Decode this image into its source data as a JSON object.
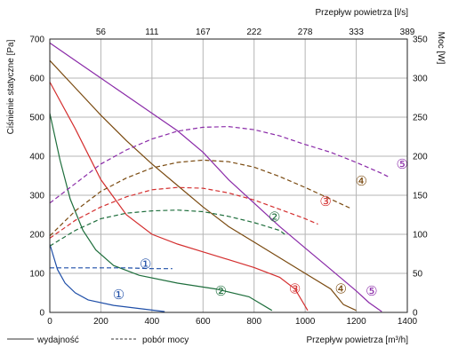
{
  "chart_data": {
    "type": "line",
    "x_axis": {
      "label": "Przepływ powietrza [m³/h]",
      "range": [
        0,
        1400
      ],
      "ticks": [
        0,
        200,
        400,
        600,
        800,
        1000,
        1200,
        1400
      ]
    },
    "x_top_axis": {
      "label": "Przepływ powietrza [l/s]",
      "ticks": [
        "56",
        "111",
        "167",
        "222",
        "278",
        "333",
        "389"
      ]
    },
    "y_left_axis": {
      "label": "Ciśnienie statyczne [Pa]",
      "range": [
        0,
        700
      ],
      "ticks": [
        0,
        100,
        200,
        300,
        400,
        500,
        600,
        700
      ]
    },
    "y_right_axis": {
      "label": "Moc [W]",
      "range": [
        0,
        350
      ],
      "ticks": [
        0,
        50,
        100,
        150,
        200,
        250,
        300,
        350
      ]
    },
    "grid": true,
    "legend": [
      {
        "style": "solid",
        "label": "wydajność"
      },
      {
        "style": "dashed",
        "label": "pobór mocy"
      }
    ],
    "pressure_series": [
      {
        "id": "1",
        "color": "#1f4fa8",
        "points": [
          [
            0,
            175
          ],
          [
            30,
            110
          ],
          [
            60,
            75
          ],
          [
            100,
            50
          ],
          [
            150,
            32
          ],
          [
            250,
            18
          ],
          [
            350,
            10
          ],
          [
            450,
            2
          ]
        ]
      },
      {
        "id": "2",
        "color": "#1e6e3c",
        "points": [
          [
            0,
            510
          ],
          [
            40,
            390
          ],
          [
            80,
            290
          ],
          [
            130,
            210
          ],
          [
            180,
            160
          ],
          [
            250,
            120
          ],
          [
            350,
            95
          ],
          [
            500,
            75
          ],
          [
            650,
            60
          ],
          [
            780,
            40
          ],
          [
            870,
            5
          ]
        ]
      },
      {
        "id": "3",
        "color": "#d42f2f",
        "points": [
          [
            0,
            590
          ],
          [
            100,
            470
          ],
          [
            200,
            340
          ],
          [
            300,
            250
          ],
          [
            400,
            200
          ],
          [
            500,
            175
          ],
          [
            600,
            155
          ],
          [
            700,
            135
          ],
          [
            800,
            115
          ],
          [
            900,
            90
          ],
          [
            960,
            60
          ],
          [
            1010,
            5
          ]
        ]
      },
      {
        "id": "4",
        "color": "#7a4a10",
        "points": [
          [
            0,
            645
          ],
          [
            100,
            575
          ],
          [
            200,
            505
          ],
          [
            300,
            440
          ],
          [
            400,
            380
          ],
          [
            500,
            325
          ],
          [
            600,
            270
          ],
          [
            700,
            220
          ],
          [
            800,
            180
          ],
          [
            900,
            140
          ],
          [
            1000,
            100
          ],
          [
            1100,
            60
          ],
          [
            1150,
            20
          ],
          [
            1200,
            5
          ]
        ]
      },
      {
        "id": "5",
        "color": "#8a2aa8",
        "points": [
          [
            0,
            690
          ],
          [
            100,
            645
          ],
          [
            200,
            600
          ],
          [
            300,
            555
          ],
          [
            400,
            510
          ],
          [
            500,
            465
          ],
          [
            600,
            410
          ],
          [
            700,
            340
          ],
          [
            800,
            280
          ],
          [
            900,
            220
          ],
          [
            1000,
            165
          ],
          [
            1100,
            110
          ],
          [
            1200,
            55
          ],
          [
            1250,
            25
          ],
          [
            1300,
            2
          ]
        ]
      }
    ],
    "power_series": [
      {
        "id": "1",
        "color": "#1f4fa8",
        "points": [
          [
            0,
            57
          ],
          [
            100,
            57
          ],
          [
            200,
            57
          ],
          [
            300,
            57
          ],
          [
            400,
            56
          ],
          [
            480,
            56
          ]
        ]
      },
      {
        "id": "2",
        "color": "#1e6e3c",
        "points": [
          [
            0,
            85
          ],
          [
            100,
            105
          ],
          [
            200,
            120
          ],
          [
            300,
            127
          ],
          [
            400,
            130
          ],
          [
            500,
            131
          ],
          [
            600,
            129
          ],
          [
            700,
            123
          ],
          [
            800,
            115
          ],
          [
            900,
            105
          ],
          [
            920,
            100
          ]
        ]
      },
      {
        "id": "3",
        "color": "#d42f2f",
        "points": [
          [
            0,
            95
          ],
          [
            100,
            118
          ],
          [
            200,
            135
          ],
          [
            300,
            148
          ],
          [
            400,
            157
          ],
          [
            500,
            160
          ],
          [
            600,
            159
          ],
          [
            700,
            153
          ],
          [
            800,
            144
          ],
          [
            900,
            132
          ],
          [
            1000,
            120
          ],
          [
            1050,
            113
          ]
        ]
      },
      {
        "id": "4",
        "color": "#7a4a10",
        "points": [
          [
            0,
            98
          ],
          [
            100,
            130
          ],
          [
            200,
            155
          ],
          [
            300,
            172
          ],
          [
            400,
            185
          ],
          [
            500,
            192
          ],
          [
            600,
            195
          ],
          [
            700,
            193
          ],
          [
            800,
            186
          ],
          [
            900,
            174
          ],
          [
            1000,
            160
          ],
          [
            1100,
            145
          ],
          [
            1180,
            133
          ]
        ]
      },
      {
        "id": "5",
        "color": "#8a2aa8",
        "points": [
          [
            0,
            140
          ],
          [
            100,
            165
          ],
          [
            200,
            190
          ],
          [
            300,
            208
          ],
          [
            400,
            222
          ],
          [
            500,
            232
          ],
          [
            600,
            237
          ],
          [
            700,
            238
          ],
          [
            800,
            234
          ],
          [
            900,
            226
          ],
          [
            1000,
            215
          ],
          [
            1100,
            205
          ],
          [
            1200,
            192
          ],
          [
            1300,
            178
          ],
          [
            1330,
            173
          ]
        ]
      }
    ],
    "curve_labels": [
      {
        "text": "①",
        "color": "#1f4fa8",
        "x": 270,
        "y": 45
      },
      {
        "text": "②",
        "color": "#1e6e3c",
        "x": 670,
        "y": 55
      },
      {
        "text": "③",
        "color": "#d42f2f",
        "x": 960,
        "y": 60
      },
      {
        "text": "④",
        "color": "#7a4a10",
        "x": 1140,
        "y": 60
      },
      {
        "text": "⑤",
        "color": "#8a2aa8",
        "x": 1260,
        "y": 55
      },
      {
        "text": "①",
        "color": "#1f4fa8",
        "x": 375,
        "y": 62,
        "axis": "power"
      },
      {
        "text": "②",
        "color": "#1e6e3c",
        "x": 880,
        "y": 122,
        "axis": "power"
      },
      {
        "text": "③",
        "color": "#d42f2f",
        "x": 1080,
        "y": 142,
        "axis": "power"
      },
      {
        "text": "④",
        "color": "#7a4a10",
        "x": 1220,
        "y": 168,
        "axis": "power"
      },
      {
        "text": "⑤",
        "color": "#8a2aa8",
        "x": 1380,
        "y": 190,
        "axis": "power"
      }
    ]
  }
}
